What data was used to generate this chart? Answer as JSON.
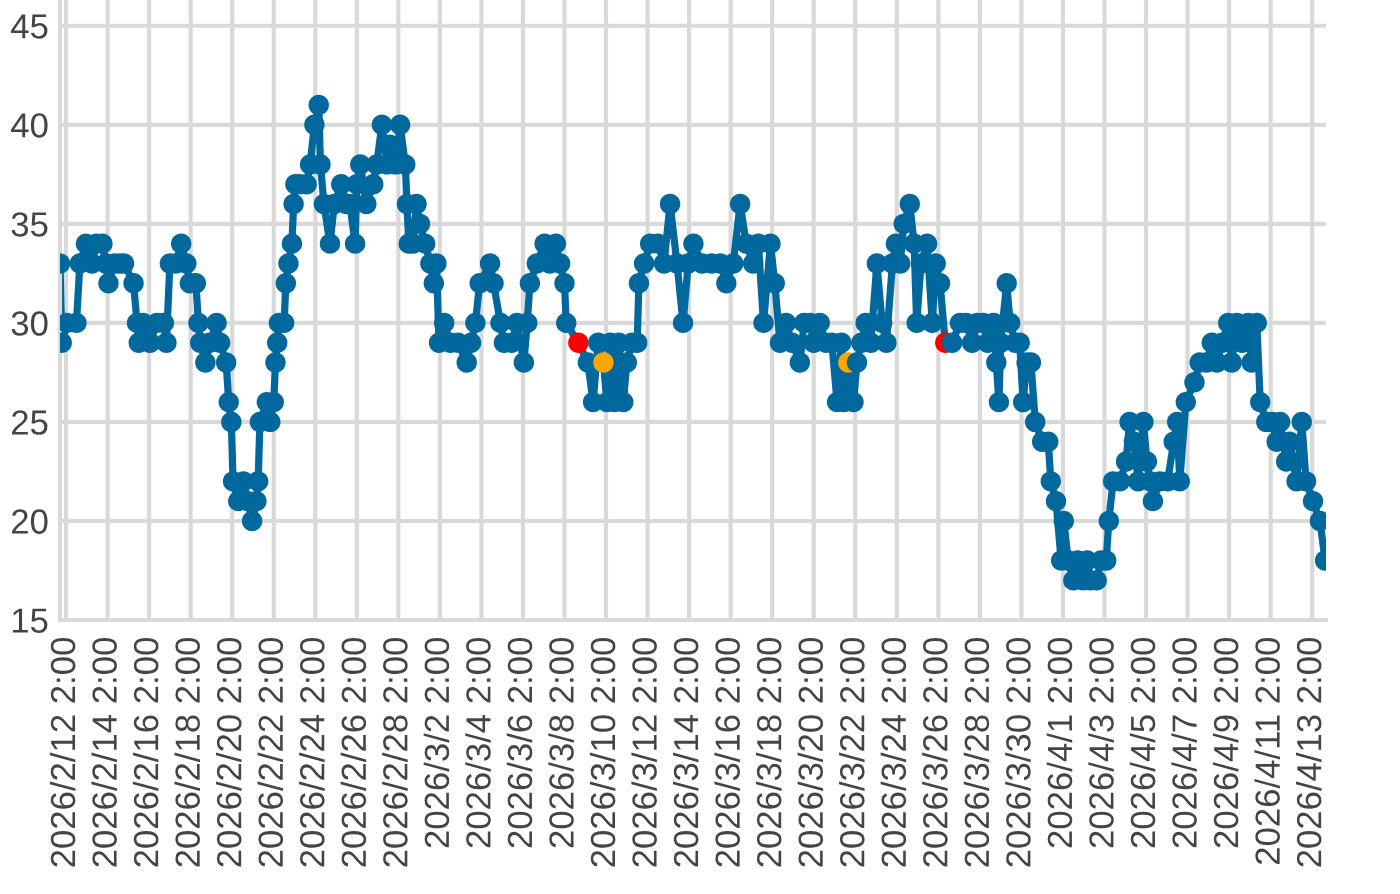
{
  "chart_data": {
    "type": "line",
    "marker": "circle",
    "line_style": "solid",
    "grid": true,
    "xlim": [
      "2026-02-11T19:00",
      "2026-04-13T18:00"
    ],
    "xticks": [
      {
        "value": "2026-02-12T02:00",
        "label": "2026/2/12 2:00"
      },
      {
        "value": "2026-02-14T02:00",
        "label": "2026/2/14 2:00"
      },
      {
        "value": "2026-02-16T02:00",
        "label": "2026/2/16 2:00"
      },
      {
        "value": "2026-02-18T02:00",
        "label": "2026/2/18 2:00"
      },
      {
        "value": "2026-02-20T02:00",
        "label": "2026/2/20 2:00"
      },
      {
        "value": "2026-02-22T02:00",
        "label": "2026/2/22 2:00"
      },
      {
        "value": "2026-02-24T02:00",
        "label": "2026/2/24 2:00"
      },
      {
        "value": "2026-02-26T02:00",
        "label": "2026/2/26 2:00"
      },
      {
        "value": "2026-02-28T02:00",
        "label": "2026/2/28 2:00"
      },
      {
        "value": "2026-03-02T02:00",
        "label": "2026/3/2 2:00"
      },
      {
        "value": "2026-03-04T02:00",
        "label": "2026/3/4 2:00"
      },
      {
        "value": "2026-03-06T02:00",
        "label": "2026/3/6 2:00"
      },
      {
        "value": "2026-03-08T02:00",
        "label": "2026/3/8 2:00"
      },
      {
        "value": "2026-03-10T02:00",
        "label": "2026/3/10 2:00"
      },
      {
        "value": "2026-03-12T02:00",
        "label": "2026/3/12 2:00"
      },
      {
        "value": "2026-03-14T02:00",
        "label": "2026/3/14 2:00"
      },
      {
        "value": "2026-03-16T02:00",
        "label": "2026/3/16 2:00"
      },
      {
        "value": "2026-03-18T02:00",
        "label": "2026/3/18 2:00"
      },
      {
        "value": "2026-03-20T02:00",
        "label": "2026/3/20 2:00"
      },
      {
        "value": "2026-03-22T02:00",
        "label": "2026/3/22 2:00"
      },
      {
        "value": "2026-03-24T02:00",
        "label": "2026/3/24 2:00"
      },
      {
        "value": "2026-03-26T02:00",
        "label": "2026/3/26 2:00"
      },
      {
        "value": "2026-03-28T02:00",
        "label": "2026/3/28 2:00"
      },
      {
        "value": "2026-03-30T02:00",
        "label": "2026/3/30 2:00"
      },
      {
        "value": "2026-04-01T02:00",
        "label": "2026/4/1 2:00"
      },
      {
        "value": "2026-04-03T02:00",
        "label": "2026/4/3 2:00"
      },
      {
        "value": "2026-04-05T02:00",
        "label": "2026/4/5 2:00"
      },
      {
        "value": "2026-04-07T02:00",
        "label": "2026/4/7 2:00"
      },
      {
        "value": "2026-04-09T02:00",
        "label": "2026/4/9 2:00"
      },
      {
        "value": "2026-04-11T02:00",
        "label": "2026/4/11 2:00"
      },
      {
        "value": "2026-04-13T02:00",
        "label": "2026/4/13 2:00"
      }
    ],
    "ylim": [
      15,
      46.3
    ],
    "yticks": [
      15,
      20,
      25,
      30,
      35,
      40,
      45
    ],
    "series": [
      {
        "color": "#00689c",
        "x": [
          "2026-02-11T19:00",
          "2026-02-11T21:00",
          "2026-02-12T03:00",
          "2026-02-12T14:00",
          "2026-02-12T18:00",
          "2026-02-13T01:00",
          "2026-02-13T08:00",
          "2026-02-13T13:00",
          "2026-02-13T20:00",
          "2026-02-14T00:00",
          "2026-02-14T03:00",
          "2026-02-14T10:00",
          "2026-02-14T16:00",
          "2026-02-14T21:00",
          "2026-02-15T08:00",
          "2026-02-15T12:00",
          "2026-02-15T14:00",
          "2026-02-15T19:00",
          "2026-02-16T03:00",
          "2026-02-16T11:00",
          "2026-02-16T19:00",
          "2026-02-16T22:00",
          "2026-02-17T02:00",
          "2026-02-17T09:00",
          "2026-02-17T15:00",
          "2026-02-17T21:00",
          "2026-02-18T01:00",
          "2026-02-18T08:00",
          "2026-02-18T11:00",
          "2026-02-18T13:00",
          "2026-02-18T19:00",
          "2026-02-19T00:00",
          "2026-02-19T08:00",
          "2026-02-19T12:00",
          "2026-02-19T19:00",
          "2026-02-19T22:00",
          "2026-02-20T01:00",
          "2026-02-20T03:00",
          "2026-02-20T09:00",
          "2026-02-20T15:00",
          "2026-02-20T20:00",
          "2026-02-21T01:00",
          "2026-02-21T06:00",
          "2026-02-21T08:00",
          "2026-02-21T10:00",
          "2026-02-21T18:00",
          "2026-02-21T22:00",
          "2026-02-22T02:00",
          "2026-02-22T04:00",
          "2026-02-22T06:00",
          "2026-02-22T08:00",
          "2026-02-22T14:00",
          "2026-02-22T16:00",
          "2026-02-22T19:00",
          "2026-02-22T23:00",
          "2026-02-23T01:00",
          "2026-02-23T03:00",
          "2026-02-23T08:00",
          "2026-02-23T16:00",
          "2026-02-23T20:00",
          "2026-02-24T01:00",
          "2026-02-24T06:00",
          "2026-02-24T08:00",
          "2026-02-24T12:00",
          "2026-02-24T19:00",
          "2026-02-25T00:00",
          "2026-02-25T08:00",
          "2026-02-25T14:00",
          "2026-02-25T18:00",
          "2026-02-26T00:00",
          "2026-02-26T02:00",
          "2026-02-26T06:00",
          "2026-02-26T13:00",
          "2026-02-26T21:00",
          "2026-02-27T01:00",
          "2026-02-27T07:00",
          "2026-02-27T13:00",
          "2026-02-27T16:00",
          "2026-02-27T23:00",
          "2026-02-28T04:00",
          "2026-02-28T10:00",
          "2026-02-28T12:00",
          "2026-02-28T14:00",
          "2026-02-28T19:00",
          "2026-02-28T23:00",
          "2026-03-01T03:00",
          "2026-03-01T09:00",
          "2026-03-01T15:00",
          "2026-03-01T19:00",
          "2026-03-01T22:00",
          "2026-03-02T01:00",
          "2026-03-02T07:00",
          "2026-03-02T14:00",
          "2026-03-02T23:00",
          "2026-03-03T09:00",
          "2026-03-03T14:00",
          "2026-03-03T19:00",
          "2026-03-04T00:00",
          "2026-03-04T12:00",
          "2026-03-04T16:00",
          "2026-03-05T00:00",
          "2026-03-05T04:00",
          "2026-03-05T13:00",
          "2026-03-05T19:00",
          "2026-03-06T03:00",
          "2026-03-06T07:00",
          "2026-03-06T10:00",
          "2026-03-06T18:00",
          "2026-03-07T03:00",
          "2026-03-07T09:00",
          "2026-03-07T16:00",
          "2026-03-07T21:00",
          "2026-03-08T02:00",
          "2026-03-08T04:00",
          "2026-03-08T18:00",
          "2026-03-09T05:00",
          "2026-03-09T11:00",
          "2026-03-09T17:00",
          "2026-03-09T23:00",
          "2026-03-10T03:00",
          "2026-03-10T07:00",
          "2026-03-10T12:00",
          "2026-03-10T17:00",
          "2026-03-10T22:00",
          "2026-03-11T02:00",
          "2026-03-11T08:00",
          "2026-03-11T14:00",
          "2026-03-11T16:00",
          "2026-03-11T22:00",
          "2026-03-12T05:00",
          "2026-03-12T14:00",
          "2026-03-12T21:00",
          "2026-03-13T04:00",
          "2026-03-13T12:00",
          "2026-03-13T19:00",
          "2026-03-14T01:00",
          "2026-03-14T07:00",
          "2026-03-14T17:00",
          "2026-03-15T04:00",
          "2026-03-15T14:00",
          "2026-03-15T21:00",
          "2026-03-16T05:00",
          "2026-03-16T13:00",
          "2026-03-16T20:00",
          "2026-03-17T04:00",
          "2026-03-17T10:00",
          "2026-03-17T16:00",
          "2026-03-18T00:00",
          "2026-03-18T05:00",
          "2026-03-18T11:00",
          "2026-03-18T18:00",
          "2026-03-19T01:00",
          "2026-03-19T10:00",
          "2026-03-19T15:00",
          "2026-03-19T22:00",
          "2026-03-20T02:00",
          "2026-03-20T09:00",
          "2026-03-20T16:00",
          "2026-03-20T23:00",
          "2026-03-21T05:00",
          "2026-03-21T10:00",
          "2026-03-21T13:00",
          "2026-03-21T18:00",
          "2026-03-22T00:00",
          "2026-03-22T04:00",
          "2026-03-22T09:00",
          "2026-03-22T14:00",
          "2026-03-22T20:00",
          "2026-03-23T03:00",
          "2026-03-23T09:00",
          "2026-03-23T14:00",
          "2026-03-23T21:00",
          "2026-03-24T01:00",
          "2026-03-24T06:00",
          "2026-03-24T10:00",
          "2026-03-24T17:00",
          "2026-03-24T22:00",
          "2026-03-25T01:00",
          "2026-03-25T06:00",
          "2026-03-25T13:00",
          "2026-03-25T19:00",
          "2026-03-25T23:00",
          "2026-03-26T04:00",
          "2026-03-26T10:00",
          "2026-03-26T18:00",
          "2026-03-27T03:00",
          "2026-03-27T10:00",
          "2026-03-27T17:00",
          "2026-03-27T23:00",
          "2026-03-28T06:00",
          "2026-03-28T11:00",
          "2026-03-28T18:00",
          "2026-03-28T21:00",
          "2026-03-29T00:00",
          "2026-03-29T02:00",
          "2026-03-29T09:00",
          "2026-03-29T13:00",
          "2026-03-29T19:00",
          "2026-03-30T00:00",
          "2026-03-30T04:00",
          "2026-03-30T08:00",
          "2026-03-30T13:00",
          "2026-03-30T18:00",
          "2026-03-31T02:00",
          "2026-03-31T09:00",
          "2026-03-31T12:00",
          "2026-03-31T18:00",
          "2026-04-01T00:00",
          "2026-04-01T03:00",
          "2026-04-01T08:00",
          "2026-04-01T14:00",
          "2026-04-01T19:00",
          "2026-04-02T01:00",
          "2026-04-02T06:00",
          "2026-04-02T10:00",
          "2026-04-02T17:00",
          "2026-04-02T22:00",
          "2026-04-03T04:00",
          "2026-04-03T07:00",
          "2026-04-03T12:00",
          "2026-04-03T20:00",
          "2026-04-04T03:00",
          "2026-04-04T07:00",
          "2026-04-04T12:00",
          "2026-04-04T17:00",
          "2026-04-04T23:00",
          "2026-04-05T03:00",
          "2026-04-05T07:00",
          "2026-04-05T10:00",
          "2026-04-05T18:00",
          "2026-04-06T03:00",
          "2026-04-06T10:00",
          "2026-04-06T14:00",
          "2026-04-06T17:00",
          "2026-04-07T00:00",
          "2026-04-07T10:00",
          "2026-04-07T16:00",
          "2026-04-08T00:00",
          "2026-04-08T06:00",
          "2026-04-08T12:00",
          "2026-04-08T18:00",
          "2026-04-09T01:00",
          "2026-04-09T05:00",
          "2026-04-09T11:00",
          "2026-04-09T17:00",
          "2026-04-10T00:00",
          "2026-04-10T04:00",
          "2026-04-10T10:00",
          "2026-04-10T14:00",
          "2026-04-10T21:00",
          "2026-04-11T04:00",
          "2026-04-11T09:00",
          "2026-04-11T13:00",
          "2026-04-11T20:00",
          "2026-04-12T00:00",
          "2026-04-12T08:00",
          "2026-04-12T14:00",
          "2026-04-12T19:00",
          "2026-04-13T03:00",
          "2026-04-13T11:00",
          "2026-04-13T17:00"
        ],
        "values": [
          33,
          29,
          30,
          30,
          33,
          34,
          33,
          34,
          34,
          33,
          32,
          33,
          33,
          33,
          32,
          30,
          29,
          30,
          29,
          30,
          30,
          29,
          33,
          33,
          34,
          33,
          32,
          32,
          30,
          29,
          28,
          29,
          30,
          29,
          28,
          26,
          25,
          22,
          21,
          22,
          21,
          20,
          21,
          22,
          25,
          26,
          25,
          26,
          28,
          29,
          30,
          30,
          32,
          33,
          34,
          36,
          37,
          37,
          37,
          38,
          40,
          41,
          38,
          36,
          34,
          36,
          37,
          36,
          36,
          34,
          37,
          38,
          36,
          37,
          38,
          40,
          38,
          39,
          38,
          40,
          38,
          36,
          34,
          34,
          36,
          35,
          34,
          33,
          32,
          33,
          29,
          30,
          29,
          29,
          28,
          29,
          30,
          32,
          33,
          32,
          30,
          29,
          29,
          30,
          28,
          30,
          32,
          33,
          34,
          33,
          34,
          33,
          32,
          30,
          29,
          28,
          26,
          29,
          28,
          26,
          29,
          26,
          29,
          26,
          28,
          29,
          29,
          32,
          33,
          34,
          34,
          33,
          36,
          33,
          30,
          33,
          34,
          33,
          33,
          33,
          32,
          33,
          36,
          34,
          33,
          34,
          30,
          34,
          32,
          29,
          30,
          29,
          28,
          30,
          30,
          29,
          30,
          29,
          29,
          26,
          29,
          26,
          28,
          26,
          28,
          29,
          30,
          29,
          33,
          30,
          29,
          33,
          34,
          33,
          35,
          36,
          34,
          30,
          33,
          34,
          30,
          33,
          32,
          29,
          29,
          30,
          30,
          29,
          30,
          30,
          29,
          30,
          28,
          26,
          29,
          32,
          30,
          29,
          29,
          26,
          28,
          28,
          25,
          24,
          24,
          22,
          21,
          18,
          20,
          18,
          17,
          18,
          17,
          18,
          17,
          17,
          18,
          18,
          20,
          22,
          22,
          23,
          25,
          24,
          22,
          25,
          23,
          22,
          21,
          22,
          22,
          24,
          25,
          22,
          26,
          27,
          28,
          28,
          29,
          28,
          29,
          30,
          28,
          30,
          29,
          30,
          28,
          30,
          26,
          25,
          25,
          24,
          25,
          23,
          24,
          22,
          25,
          22,
          21,
          20,
          18
        ],
        "colors": [
          "#00689c",
          "#00689c",
          "#00689c",
          "#00689c",
          "#00689c",
          "#00689c",
          "#00689c",
          "#00689c",
          "#00689c",
          "#00689c",
          "#00689c",
          "#00689c",
          "#00689c",
          "#00689c",
          "#00689c",
          "#00689c",
          "#00689c",
          "#00689c",
          "#00689c",
          "#00689c",
          "#00689c",
          "#00689c",
          "#00689c",
          "#00689c",
          "#00689c",
          "#00689c",
          "#00689c",
          "#00689c",
          "#00689c",
          "#00689c",
          "#00689c",
          "#00689c",
          "#00689c",
          "#00689c",
          "#00689c",
          "#00689c",
          "#00689c",
          "#00689c",
          "#00689c",
          "#00689c",
          "#00689c",
          "#00689c",
          "#00689c",
          "#00689c",
          "#00689c",
          "#00689c",
          "#00689c",
          "#00689c",
          "#00689c",
          "#00689c",
          "#00689c",
          "#00689c",
          "#00689c",
          "#00689c",
          "#00689c",
          "#00689c",
          "#00689c",
          "#00689c",
          "#00689c",
          "#00689c",
          "#00689c",
          "#00689c",
          "#00689c",
          "#00689c",
          "#00689c",
          "#00689c",
          "#00689c",
          "#00689c",
          "#00689c",
          "#00689c",
          "#00689c",
          "#00689c",
          "#00689c",
          "#00689c",
          "#00689c",
          "#00689c",
          "#00689c",
          "#00689c",
          "#00689c",
          "#00689c",
          "#00689c",
          "#00689c",
          "#00689c",
          "#00689c",
          "#00689c",
          "#00689c",
          "#00689c",
          "#00689c",
          "#00689c",
          "#00689c",
          "#00689c",
          "#00689c",
          "#00689c",
          "#00689c",
          "#00689c",
          "#00689c",
          "#00689c",
          "#00689c",
          "#00689c",
          "#00689c",
          "#00689c",
          "#00689c",
          "#00689c",
          "#00689c",
          "#00689c",
          "#00689c",
          "#00689c",
          "#00689c",
          "#00689c",
          "#00689c",
          "#00689c",
          "#00689c",
          "#00689c",
          "#00689c",
          "#ff0000",
          "#00689c",
          "#00689c",
          "#00689c",
          "#ffa500",
          "#00689c",
          "#00689c",
          "#00689c",
          "#00689c",
          "#00689c",
          "#00689c",
          "#00689c",
          "#00689c",
          "#00689c",
          "#00689c",
          "#00689c",
          "#00689c",
          "#00689c",
          "#00689c",
          "#00689c",
          "#00689c",
          "#00689c",
          "#00689c",
          "#00689c",
          "#00689c",
          "#00689c",
          "#00689c",
          "#00689c",
          "#00689c",
          "#00689c",
          "#00689c",
          "#00689c",
          "#00689c",
          "#00689c",
          "#00689c",
          "#00689c",
          "#00689c",
          "#00689c",
          "#00689c",
          "#00689c",
          "#00689c",
          "#00689c",
          "#00689c",
          "#00689c",
          "#00689c",
          "#00689c",
          "#00689c",
          "#00689c",
          "#ffa500",
          "#00689c",
          "#00689c",
          "#00689c",
          "#00689c",
          "#00689c",
          "#00689c",
          "#00689c",
          "#00689c",
          "#00689c",
          "#00689c",
          "#00689c",
          "#00689c",
          "#00689c",
          "#00689c",
          "#00689c",
          "#00689c",
          "#00689c",
          "#00689c",
          "#00689c",
          "#00689c",
          "#ff0000",
          "#00689c",
          "#00689c",
          "#00689c",
          "#00689c",
          "#00689c",
          "#00689c",
          "#00689c",
          "#00689c",
          "#00689c",
          "#00689c",
          "#00689c",
          "#00689c",
          "#00689c",
          "#00689c",
          "#00689c",
          "#00689c",
          "#00689c",
          "#00689c",
          "#00689c",
          "#00689c",
          "#00689c",
          "#00689c",
          "#00689c",
          "#00689c",
          "#00689c",
          "#00689c",
          "#00689c",
          "#00689c",
          "#00689c",
          "#00689c",
          "#00689c",
          "#00689c",
          "#00689c",
          "#00689c",
          "#00689c",
          "#00689c",
          "#00689c",
          "#00689c",
          "#00689c",
          "#00689c",
          "#00689c",
          "#00689c",
          "#00689c",
          "#00689c",
          "#00689c",
          "#00689c",
          "#00689c",
          "#00689c",
          "#00689c",
          "#00689c",
          "#00689c",
          "#00689c",
          "#00689c",
          "#00689c",
          "#00689c",
          "#00689c",
          "#00689c",
          "#00689c",
          "#00689c",
          "#00689c",
          "#00689c",
          "#00689c",
          "#00689c",
          "#00689c",
          "#00689c",
          "#00689c",
          "#00689c",
          "#00689c",
          "#00689c",
          "#00689c",
          "#00689c",
          "#00689c",
          "#00689c",
          "#00689c",
          "#00689c",
          "#00689c",
          "#00689c"
        ]
      }
    ]
  }
}
